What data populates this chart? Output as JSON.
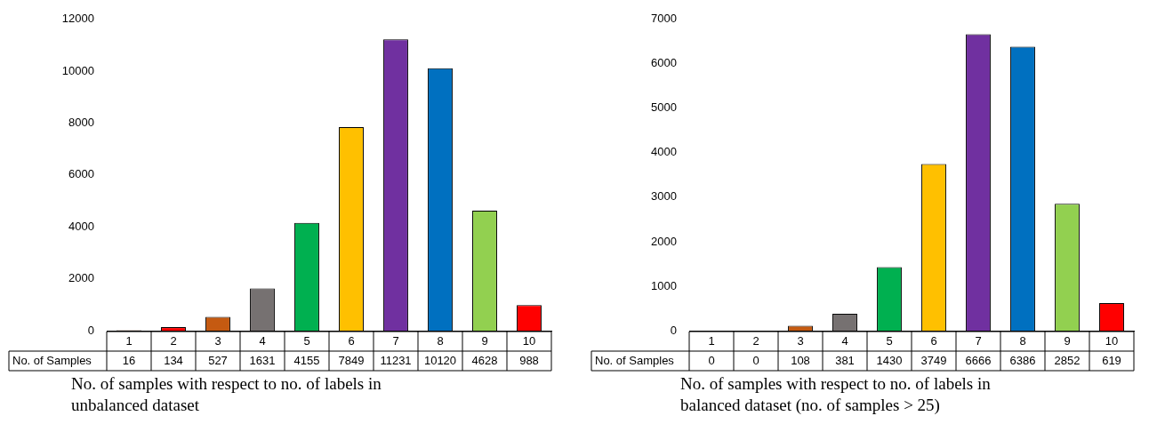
{
  "chart_data": [
    {
      "type": "bar",
      "categories": [
        "1",
        "2",
        "3",
        "4",
        "5",
        "6",
        "7",
        "8",
        "9",
        "10"
      ],
      "series": [
        {
          "name": "No. of Samples",
          "colors": [
            "#7f3f1f",
            "#ff0000",
            "#c55a11",
            "#767171",
            "#00b050",
            "#ffc000",
            "#7030a0",
            "#0070c0",
            "#92d050",
            "#ff0000"
          ],
          "values": [
            16,
            134,
            527,
            1631,
            4155,
            7849,
            11231,
            10120,
            4628,
            988
          ]
        }
      ],
      "ylim": [
        0,
        12000
      ],
      "yticks": [
        0,
        2000,
        4000,
        6000,
        8000,
        10000,
        12000
      ],
      "grid": false,
      "legend": false,
      "data_labels": true,
      "annotations": [
        "No. of samples with respect to no. of labels in unbalanced dataset"
      ]
    },
    {
      "type": "bar",
      "categories": [
        "1",
        "2",
        "3",
        "4",
        "5",
        "6",
        "7",
        "8",
        "9",
        "10"
      ],
      "series": [
        {
          "name": "No. of Samples",
          "colors": [
            "#7f3f1f",
            "#ff0000",
            "#c55a11",
            "#767171",
            "#00b050",
            "#ffc000",
            "#7030a0",
            "#0070c0",
            "#92d050",
            "#ff0000"
          ],
          "values": [
            0,
            0,
            108,
            381,
            1430,
            3749,
            6666,
            6386,
            2852,
            619
          ]
        }
      ],
      "ylim": [
        0,
        7000
      ],
      "yticks": [
        0,
        1000,
        2000,
        3000,
        4000,
        5000,
        6000,
        7000
      ],
      "grid": false,
      "legend": false,
      "data_labels": true,
      "annotations": [
        "No. of samples with respect to no. of labels in balanced dataset (no. of samples > 25)"
      ]
    }
  ]
}
